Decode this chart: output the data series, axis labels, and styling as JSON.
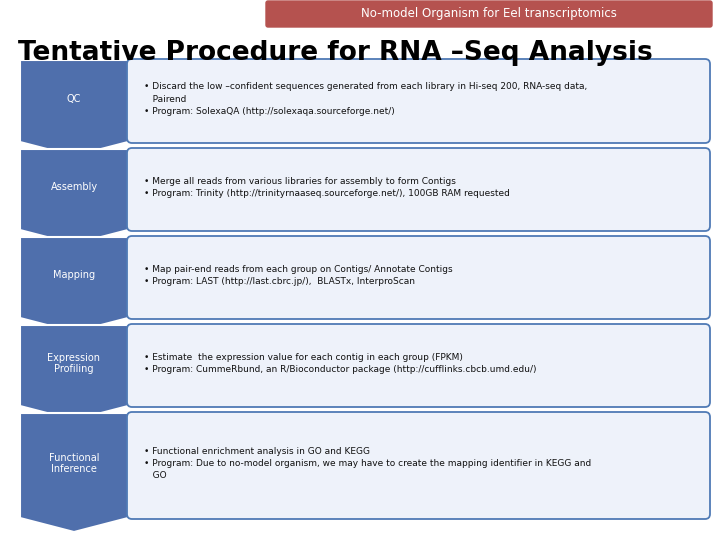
{
  "title": "Tentative Procedure for RNA –Seq Analysis",
  "header": "No-model Organism for Eel transcriptomics",
  "header_bg": "#b5524f",
  "header_text_color": "#ffffff",
  "title_color": "#000000",
  "bg_color": "#ffffff",
  "arrow_color": "#4f6fac",
  "box_border_color": "#4f7ab5",
  "box_bg_color": "#eef2fa",
  "steps": [
    {
      "label": "QC",
      "text": "• Discard the low –confident sequences generated from each library in Hi-seq 200, RNA-seq data,\n   Pairend\n• Program: SolexaQA (http://solexaqa.sourceforge.net/)"
    },
    {
      "label": "Assembly",
      "text": "• Merge all reads from various libraries for assembly to form Contigs\n• Program: Trinity (http://trinityrnaaseq.sourceforge.net/), 100GB RAM requested"
    },
    {
      "label": "Mapping",
      "text": "• Map pair-end reads from each group on Contigs/ Annotate Contigs\n• Program: LAST (http://last.cbrc.jp/),  BLASTx, InterproScan"
    },
    {
      "label": "Expression\nProfiling",
      "text": "• Estimate  the expression value for each contig in each group (FPKM)\n• Program: CummeRbund, an R/Bioconductor package (http://cufflinks.cbcb.umd.edu/)"
    },
    {
      "label": "Functional\nInference",
      "text": "• Functional enrichment analysis in GO and KEGG\n• Program: Due to no-model organism, we may have to create the mapping identifier in KEGG and\n   GO"
    }
  ]
}
